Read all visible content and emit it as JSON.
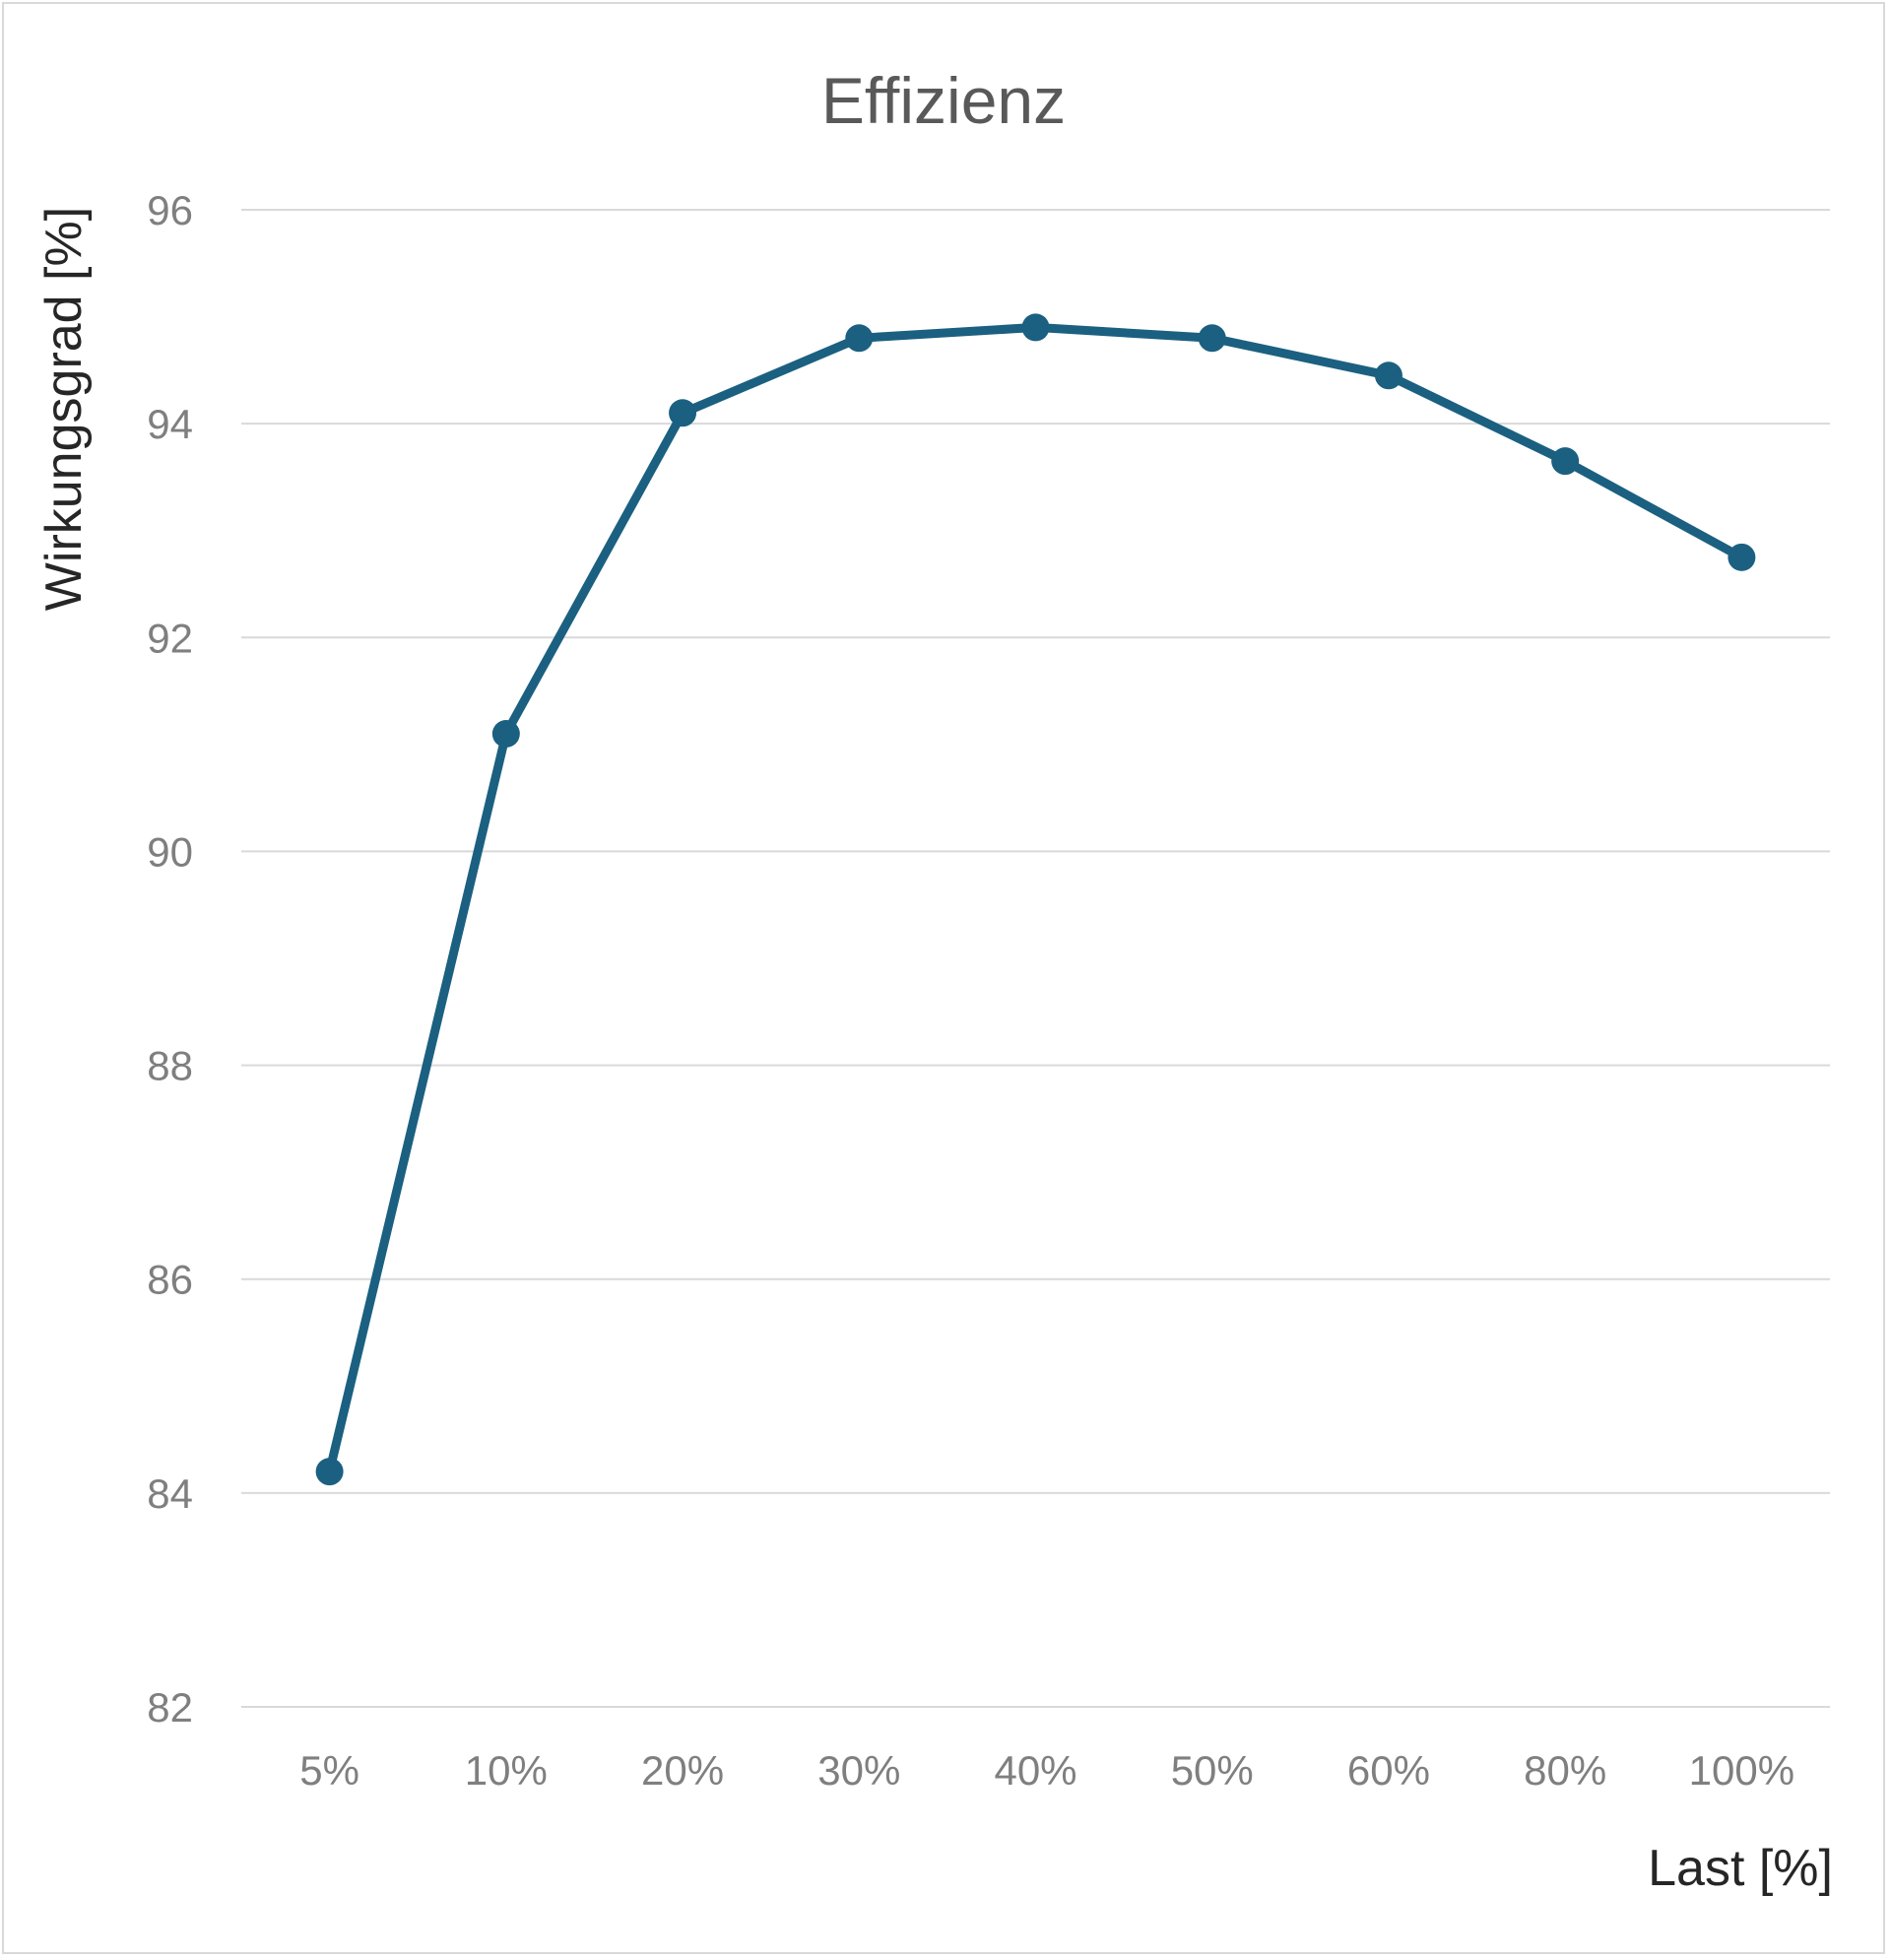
{
  "chart_data": {
    "type": "line",
    "title": "Effizienz",
    "xlabel": "Last [%]",
    "ylabel": "Wirkungsgrad [%]",
    "categories": [
      "5%",
      "10%",
      "20%",
      "30%",
      "40%",
      "50%",
      "60%",
      "80%",
      "100%"
    ],
    "series": [
      {
        "values": [
          84.2,
          91.1,
          94.1,
          94.8,
          94.9,
          94.8,
          94.45,
          93.65,
          92.75
        ]
      }
    ],
    "ylim": [
      82,
      96
    ],
    "yticks": [
      82,
      84,
      86,
      88,
      90,
      92,
      94,
      96
    ],
    "grid": true,
    "legend": "none",
    "colors": {
      "line": "#1b6080",
      "grid": "#d9d9d9"
    }
  }
}
